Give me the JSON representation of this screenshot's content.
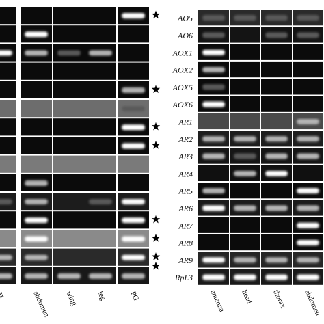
{
  "left_panel": {
    "columns": [
      "ax",
      "abdomen",
      "wing",
      "leg",
      "PG"
    ]
  },
  "right_panel": {
    "row_labels": [
      "AO5",
      "AO6",
      "AOX1",
      "AOX2",
      "AOX5",
      "AOX6",
      "AR1",
      "AR2",
      "AR3",
      "AR4",
      "AR5",
      "AR6",
      "AR7",
      "AR8",
      "AR9",
      "RpL3"
    ],
    "columns": [
      "antenna",
      "head",
      "thorax",
      "abdomen"
    ]
  }
}
